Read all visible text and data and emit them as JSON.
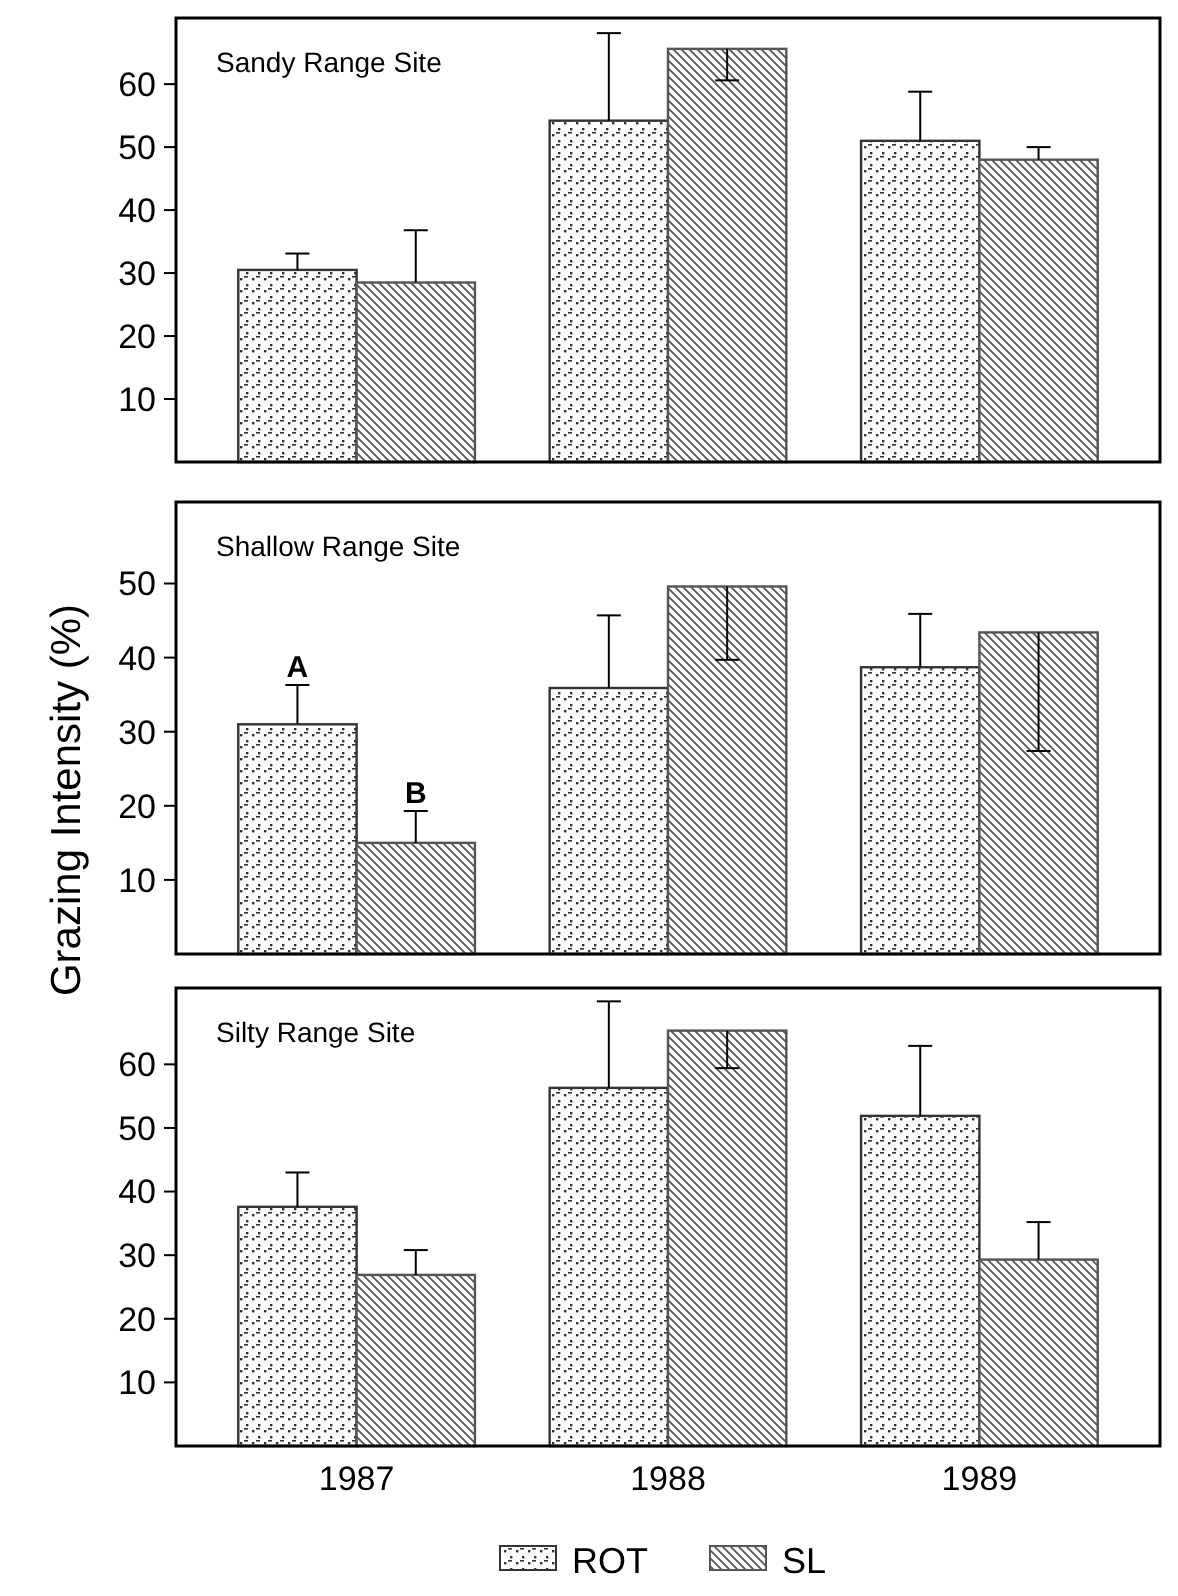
{
  "chart_data": [
    {
      "type": "bar",
      "title": "Sandy Range Site",
      "categories": [
        "1987",
        "1988",
        "1989"
      ],
      "ylim": [
        0,
        70.5
      ],
      "yticks": [
        10,
        20,
        30,
        40,
        50,
        60
      ],
      "grid": false,
      "legend": false,
      "tick_labels": "y",
      "series": [
        {
          "color": "#333333",
          "values": [
            30.5,
            54.2,
            51.0
          ],
          "errors": [
            [
              30.5,
              33.1
            ],
            [
              54.2,
              68.1
            ],
            [
              51.0,
              58.8
            ]
          ]
        },
        {
          "color": "#555555",
          "values": [
            28.5,
            65.6,
            48.0
          ],
          "errors": [
            [
              28.5,
              36.8
            ],
            [
              60.6,
              65.6
            ],
            [
              48.0,
              50.0
            ]
          ]
        }
      ]
    },
    {
      "type": "bar",
      "title": "Shallow Range Site",
      "ylabel": "Grazing Intensity (%)",
      "categories": [
        "1987",
        "1988",
        "1989"
      ],
      "ylim": [
        0,
        61
      ],
      "yticks": [
        10,
        20,
        30,
        40,
        50
      ],
      "grid": false,
      "legend": false,
      "tick_labels": "y",
      "annotations": [
        "A",
        "B"
      ],
      "series": [
        {
          "color": "#333333",
          "values": [
            31.0,
            35.9,
            38.7
          ],
          "errors": [
            [
              31.0,
              36.3
            ],
            [
              35.9,
              45.7
            ],
            [
              38.7,
              45.9
            ]
          ]
        },
        {
          "color": "#555555",
          "values": [
            15.0,
            49.6,
            43.4
          ],
          "errors": [
            [
              15.0,
              19.3
            ],
            [
              39.7,
              49.6
            ],
            [
              27.4,
              43.4
            ]
          ]
        }
      ]
    },
    {
      "type": "bar",
      "title": "Silty Range Site",
      "categories": [
        "1987",
        "1988",
        "1989"
      ],
      "ylim": [
        0,
        72
      ],
      "yticks": [
        10,
        20,
        30,
        40,
        50,
        60
      ],
      "grid": false,
      "legend": "bottom",
      "series": [
        {
          "name": "ROT",
          "color": "#333333",
          "values": [
            37.6,
            56.3,
            51.9
          ],
          "errors": [
            [
              37.6,
              43.0
            ],
            [
              56.3,
              69.9
            ],
            [
              51.9,
              62.9
            ]
          ]
        },
        {
          "name": "SL",
          "color": "#555555",
          "values": [
            26.9,
            65.3,
            29.3
          ],
          "errors": [
            [
              26.9,
              30.8
            ],
            [
              59.4,
              65.3
            ],
            [
              29.3,
              35.2
            ]
          ]
        }
      ]
    }
  ]
}
